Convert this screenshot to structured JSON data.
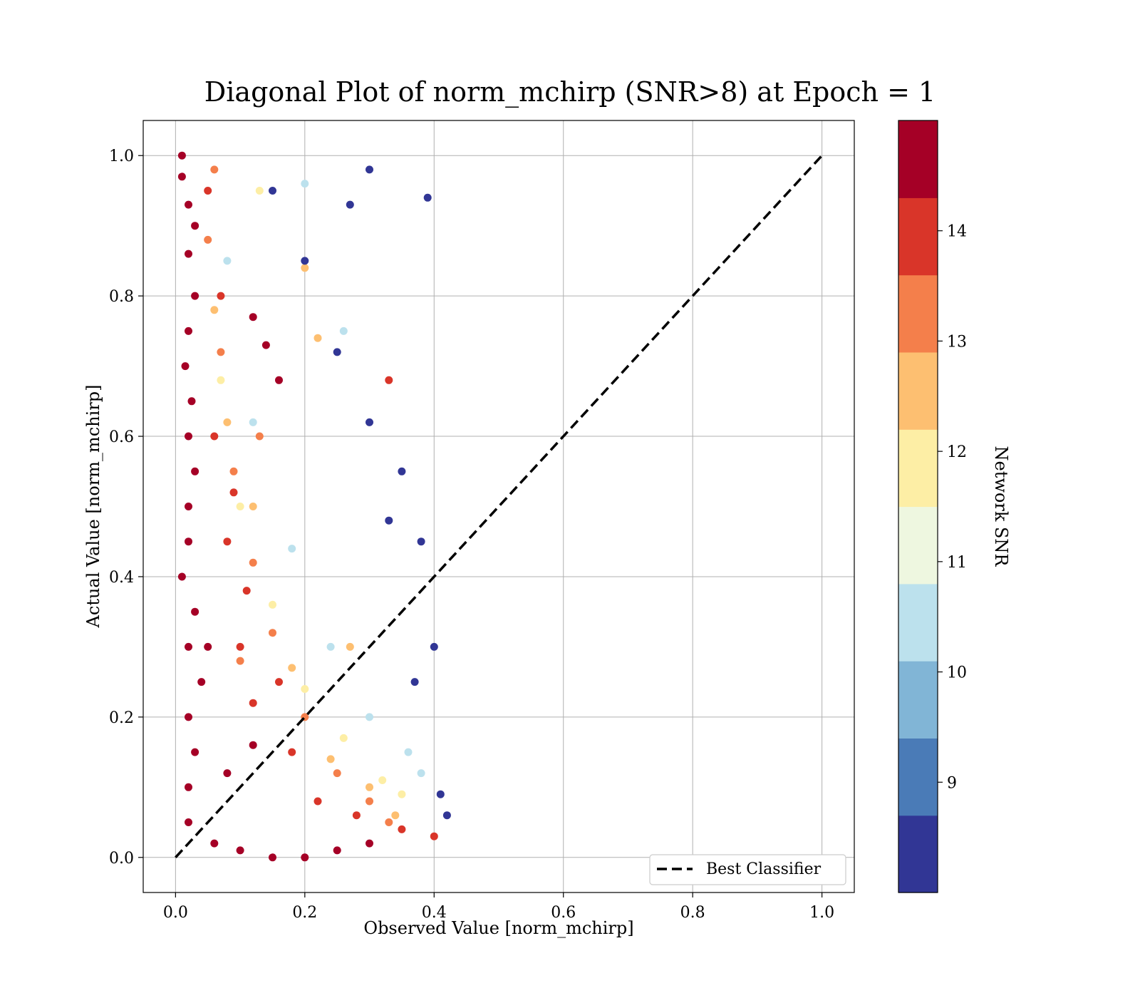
{
  "chart_data": {
    "type": "scatter",
    "title": "Diagonal Plot of norm_mchirp (SNR>8) at Epoch = 1",
    "xlabel": "Observed Value [norm_mchirp]",
    "ylabel": "Actual Value [norm_mchirp]",
    "xlim": [
      -0.05,
      1.05
    ],
    "ylim": [
      -0.05,
      1.05
    ],
    "x_ticks": [
      "0.0",
      "0.2",
      "0.4",
      "0.6",
      "0.8",
      "1.0"
    ],
    "y_ticks": [
      "0.0",
      "0.2",
      "0.4",
      "0.6",
      "0.8",
      "1.0"
    ],
    "grid": true,
    "legend": {
      "placement": "lower-right",
      "entries": [
        {
          "label": "Best Classifier",
          "style": "dashed",
          "color": "#000000"
        }
      ]
    },
    "reference_line": {
      "name": "Best Classifier",
      "x": [
        0.0,
        1.0
      ],
      "y": [
        0.0,
        1.0
      ]
    },
    "colorbar": {
      "label": "Network SNR",
      "range": [
        8.0,
        15.0
      ],
      "ticks": [
        "9",
        "10",
        "11",
        "12",
        "13",
        "14"
      ],
      "colors": [
        "#313695",
        "#4a7bb7",
        "#81b5d6",
        "#bce1ed",
        "#eef7e0",
        "#fdeea5",
        "#fdbf71",
        "#f47f4b",
        "#d93529",
        "#a50026"
      ]
    },
    "series": [
      {
        "snr_range": [
          14,
          15
        ],
        "color": "#a50026",
        "x": [
          0.01,
          0.01,
          0.02,
          0.03,
          0.02,
          0.03,
          0.02,
          0.015,
          0.025,
          0.02,
          0.03,
          0.02,
          0.02,
          0.01,
          0.03,
          0.02,
          0.04,
          0.02,
          0.03,
          0.02,
          0.02,
          0.06,
          0.1,
          0.15,
          0.2,
          0.25,
          0.3,
          0.08,
          0.12,
          0.05,
          0.14,
          0.12,
          0.16
        ],
        "y": [
          1.0,
          0.97,
          0.93,
          0.9,
          0.86,
          0.8,
          0.75,
          0.7,
          0.65,
          0.6,
          0.55,
          0.5,
          0.45,
          0.4,
          0.35,
          0.3,
          0.25,
          0.2,
          0.15,
          0.1,
          0.05,
          0.02,
          0.01,
          0.0,
          0.0,
          0.01,
          0.02,
          0.12,
          0.16,
          0.3,
          0.73,
          0.77,
          0.68
        ]
      },
      {
        "snr_range": [
          13,
          14
        ],
        "color": "#d93529",
        "x": [
          0.05,
          0.06,
          0.08,
          0.1,
          0.12,
          0.18,
          0.22,
          0.28,
          0.35,
          0.4,
          0.07,
          0.09,
          0.11,
          0.16,
          0.33
        ],
        "y": [
          0.95,
          0.6,
          0.45,
          0.3,
          0.22,
          0.15,
          0.08,
          0.06,
          0.04,
          0.03,
          0.8,
          0.52,
          0.38,
          0.25,
          0.68
        ]
      },
      {
        "snr_range": [
          12,
          13
        ],
        "color": "#f47f4b",
        "x": [
          0.05,
          0.07,
          0.09,
          0.12,
          0.15,
          0.2,
          0.25,
          0.3,
          0.33,
          0.06,
          0.1,
          0.13
        ],
        "y": [
          0.88,
          0.72,
          0.55,
          0.42,
          0.32,
          0.2,
          0.12,
          0.08,
          0.05,
          0.98,
          0.28,
          0.6
        ]
      },
      {
        "snr_range": [
          11,
          12
        ],
        "color": "#fdbf71",
        "x": [
          0.06,
          0.08,
          0.12,
          0.18,
          0.24,
          0.3,
          0.34,
          0.2,
          0.22,
          0.27
        ],
        "y": [
          0.78,
          0.62,
          0.5,
          0.27,
          0.14,
          0.1,
          0.06,
          0.84,
          0.74,
          0.3
        ]
      },
      {
        "snr_range": [
          10,
          11
        ],
        "color": "#fdeea5",
        "x": [
          0.07,
          0.1,
          0.15,
          0.2,
          0.26,
          0.32,
          0.35,
          0.13
        ],
        "y": [
          0.68,
          0.5,
          0.36,
          0.24,
          0.17,
          0.11,
          0.09,
          0.95
        ]
      },
      {
        "snr_range": [
          9,
          10
        ],
        "color": "#bce1ed",
        "x": [
          0.08,
          0.12,
          0.18,
          0.24,
          0.3,
          0.36,
          0.38,
          0.2,
          0.26
        ],
        "y": [
          0.85,
          0.62,
          0.44,
          0.3,
          0.2,
          0.15,
          0.12,
          0.96,
          0.75
        ]
      },
      {
        "snr_range": [
          8,
          9
        ],
        "color": "#313695",
        "x": [
          0.15,
          0.2,
          0.25,
          0.3,
          0.35,
          0.38,
          0.4,
          0.42,
          0.39,
          0.3,
          0.27,
          0.33,
          0.37,
          0.41
        ],
        "y": [
          0.95,
          0.85,
          0.72,
          0.62,
          0.55,
          0.45,
          0.3,
          0.06,
          0.94,
          0.98,
          0.93,
          0.48,
          0.25,
          0.09
        ]
      }
    ]
  }
}
